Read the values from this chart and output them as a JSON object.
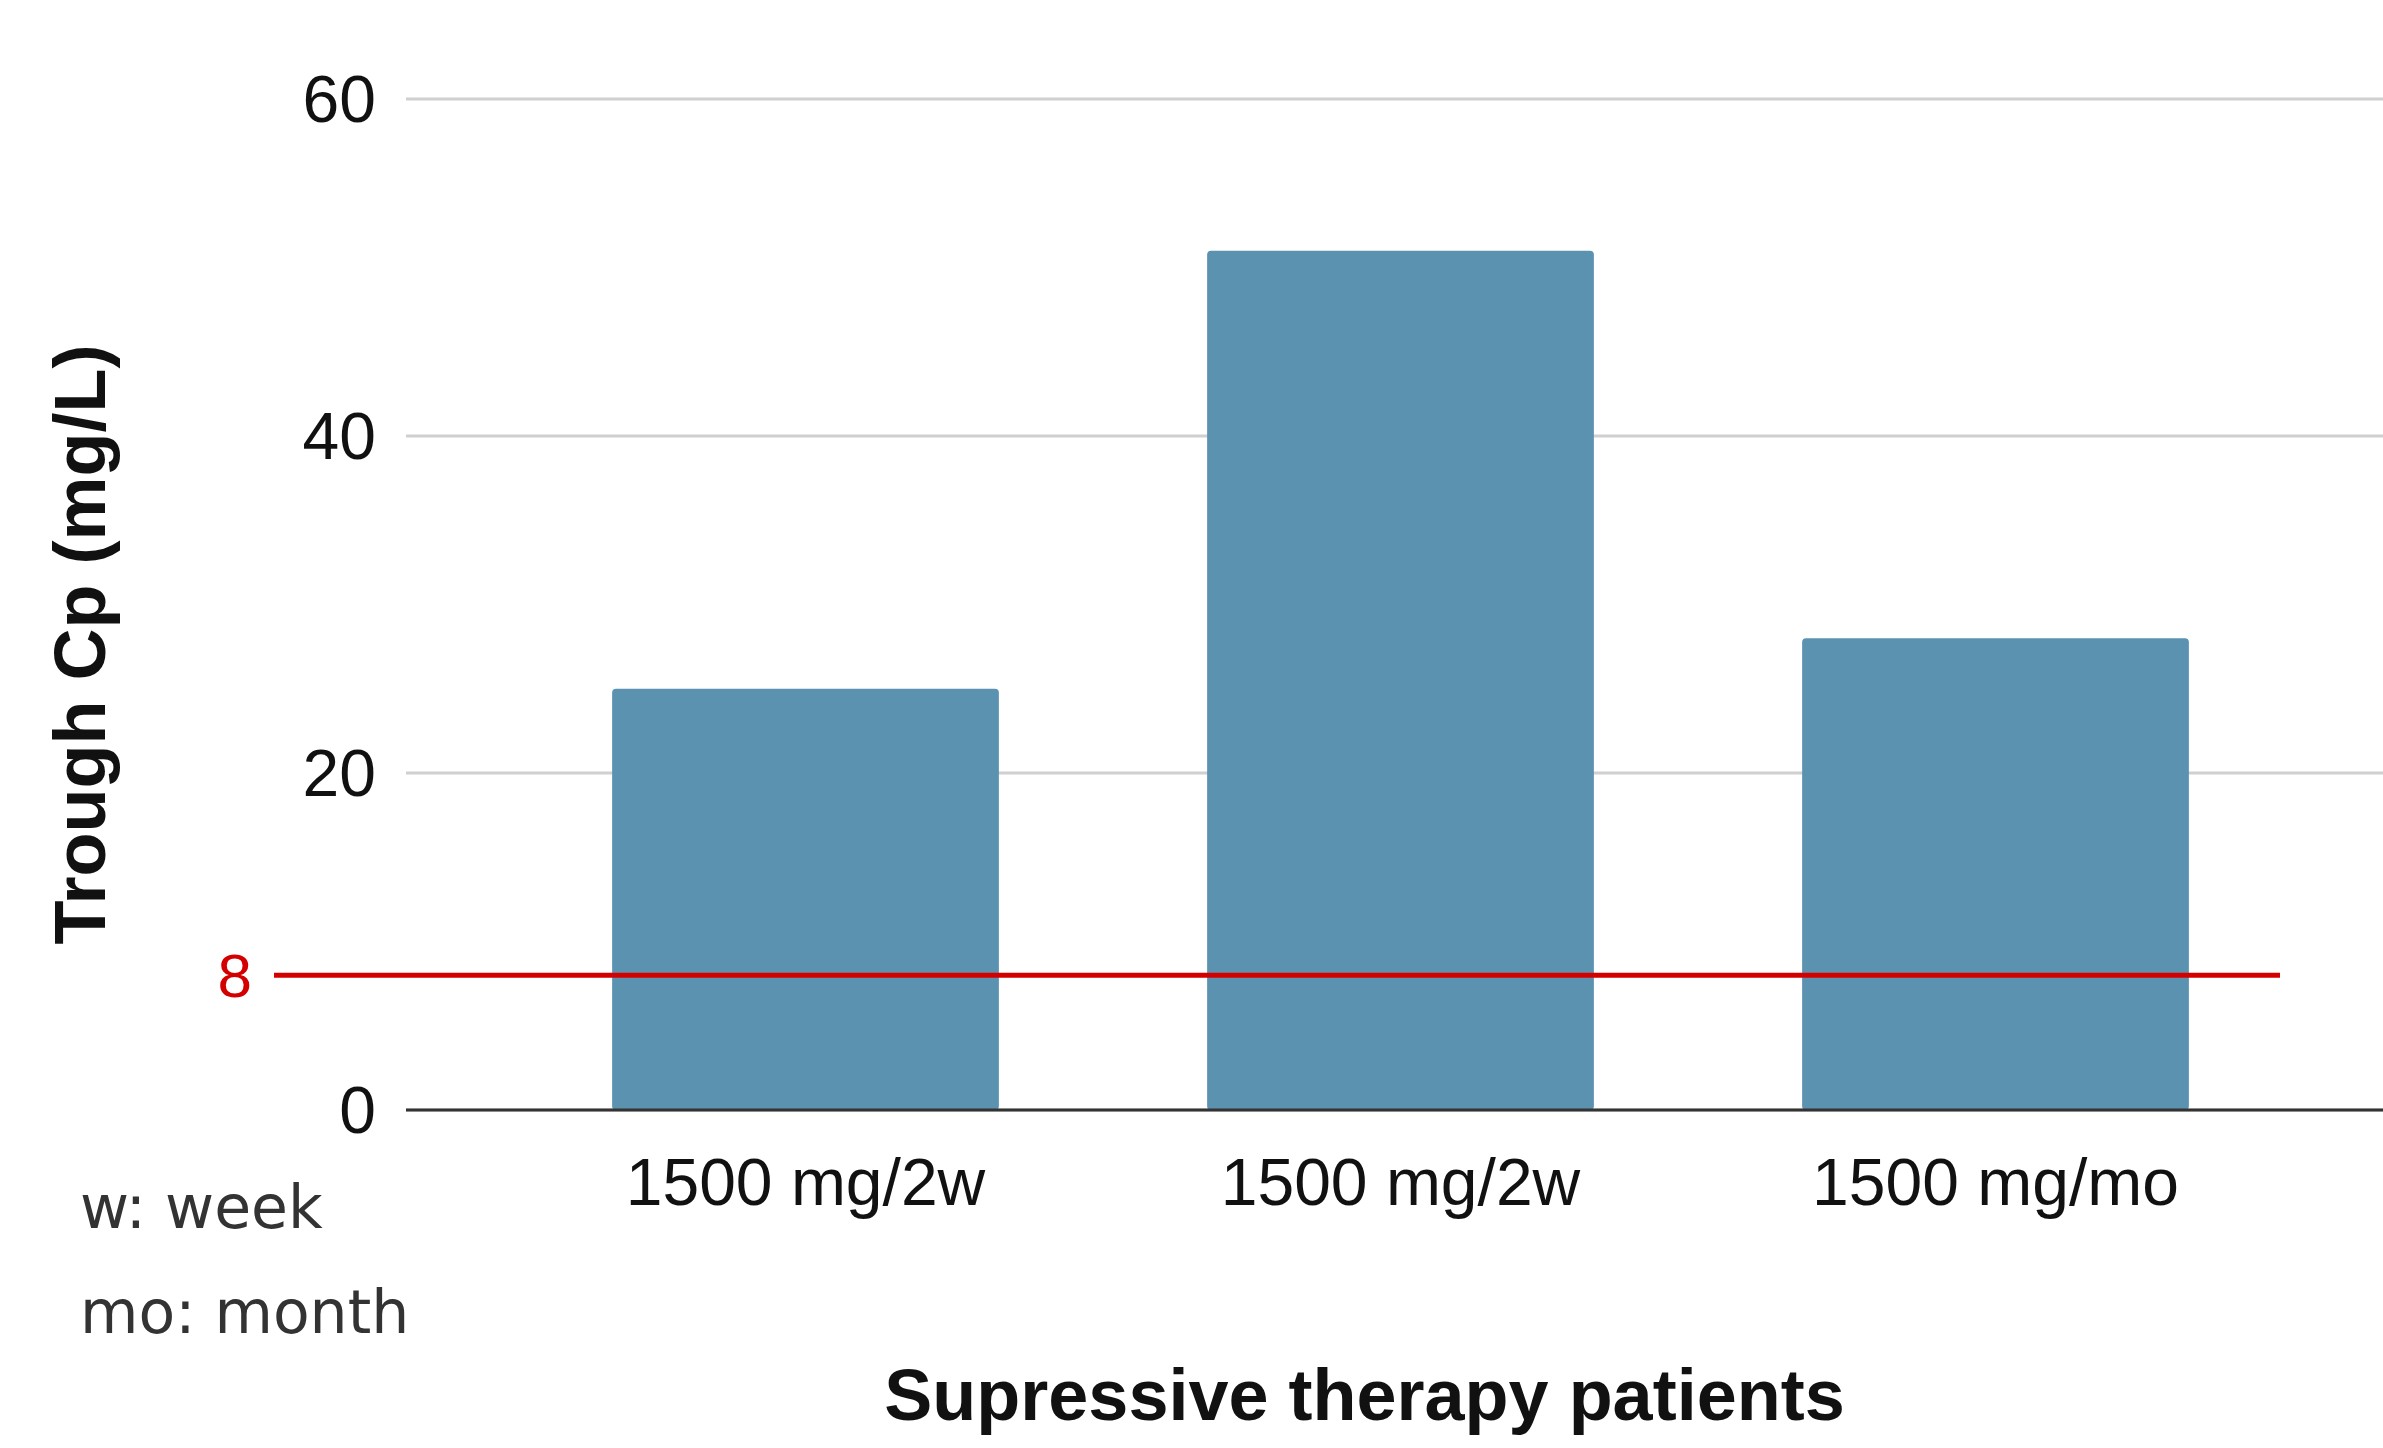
{
  "chart_data": {
    "type": "bar",
    "xlabel": "Supressive therapy patients",
    "ylabel": "Trough Cp (mg/L)",
    "categories": [
      "1500 mg/2w",
      "1500 mg/2w",
      "1500 mg/mo"
    ],
    "values": [
      25,
      51,
      28
    ],
    "color": "#5b92b0",
    "ylim": [
      0,
      60
    ],
    "yticks": [
      0,
      20,
      40,
      60
    ],
    "grid": "y",
    "ref_lines": [
      {
        "axis": "y",
        "value": 8,
        "label": "8",
        "color": "#d40000"
      }
    ],
    "annotations": [
      "w: week",
      "mo: month"
    ]
  }
}
